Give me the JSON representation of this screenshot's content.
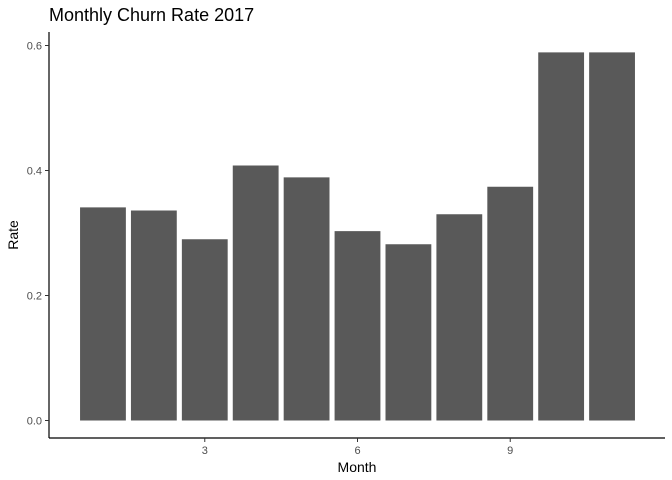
{
  "chart_data": {
    "type": "bar",
    "title": "Monthly Churn Rate 2017",
    "xlabel": "Month",
    "ylabel": "Rate",
    "x": [
      1,
      2,
      3,
      4,
      5,
      6,
      7,
      8,
      9,
      10,
      11
    ],
    "values": [
      0.341,
      0.336,
      0.29,
      0.408,
      0.389,
      0.303,
      0.282,
      0.33,
      0.374,
      0.589,
      0.589
    ],
    "x_ticks": [
      3,
      6,
      9
    ],
    "x_tick_labels": [
      "3",
      "6",
      "9"
    ],
    "y_ticks": [
      0,
      0.2,
      0.4,
      0.6
    ],
    "y_tick_labels": [
      "0.0",
      "0.2",
      "0.4",
      "0.6"
    ],
    "ylim": [
      0,
      0.6
    ],
    "xlim": [
      0.5,
      11.5
    ],
    "grid": false,
    "legend": "none",
    "bar_color": "#595959"
  }
}
